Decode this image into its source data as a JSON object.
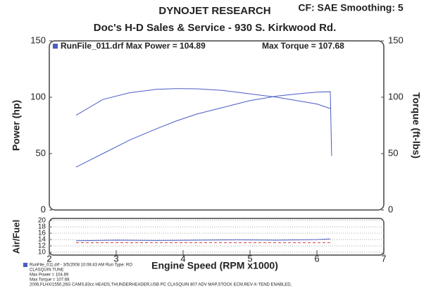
{
  "chart_data": [
    {
      "type": "line",
      "title": "DYNOJET RESEARCH",
      "settings_text": "CF: SAE  Smoothing: 5",
      "subtitle": "Doc's H-D Sales & Service - 930 S. Kirkwood Rd.",
      "legend_text": "RunFile_011.drf Max Power = 104.89",
      "torque_text": "Max Torque = 107.68",
      "ylabel": "Power (hp)",
      "y2label": "Torque (ft-lbs)",
      "x": [
        2.4,
        2.8,
        3.2,
        3.6,
        3.9,
        4.2,
        4.6,
        5.0,
        5.4,
        5.8,
        6.0,
        6.2,
        6.22
      ],
      "xlim": [
        2,
        7
      ],
      "ylim": [
        0,
        150
      ],
      "yticks": [
        0,
        50,
        100,
        150
      ],
      "y2lim": [
        0,
        150
      ],
      "y2ticks": [
        0,
        50,
        100,
        150
      ],
      "series": [
        {
          "color": "#4a5cc4",
          "values": [
            38,
            50,
            62,
            72,
            79,
            85,
            91,
            97,
            101,
            103.5,
            104.5,
            104.89,
            48
          ]
        },
        {
          "color": "#4a5cc4",
          "axis": "y2",
          "values": [
            84,
            98,
            104,
            107,
            107.68,
            107.5,
            106,
            103,
            100,
            96,
            94,
            90,
            null
          ]
        }
      ]
    },
    {
      "type": "line",
      "ylabel": "Air/Fuel",
      "xlabel": "Engine Speed (RPM x1000)",
      "x": [
        2.4,
        3.0,
        3.6,
        4.2,
        4.8,
        5.4,
        6.0,
        6.2
      ],
      "xlim": [
        2,
        7
      ],
      "xticks": [
        2,
        3,
        4,
        5,
        6,
        7
      ],
      "ylim": [
        10,
        20
      ],
      "yticks": [
        10,
        12,
        14,
        16,
        18,
        20
      ],
      "series": [
        {
          "color": "#4a5cc4",
          "values": [
            13.6,
            13.8,
            13.7,
            13.8,
            13.9,
            13.8,
            14.0,
            14.2
          ]
        },
        {
          "color": "#d04848",
          "dash": true,
          "values": [
            13,
            13,
            13,
            13,
            13,
            13,
            13,
            13
          ]
        }
      ]
    }
  ],
  "footer": [
    "RunFile_011.drf - 3/5/2008 10:08:43 AM  Run Type: RO",
    "CLASQUIN TUNE",
    "Max Power = 104.89",
    "Max Torque = 107.68",
    "2006,FLHX/1550,26G CAMS,83cc HEADS,THUNDERHEADER,USB PC CLASQUIN 807 ADV MAP,STOCK ECM,REV-X-TEND ENABLED,"
  ]
}
